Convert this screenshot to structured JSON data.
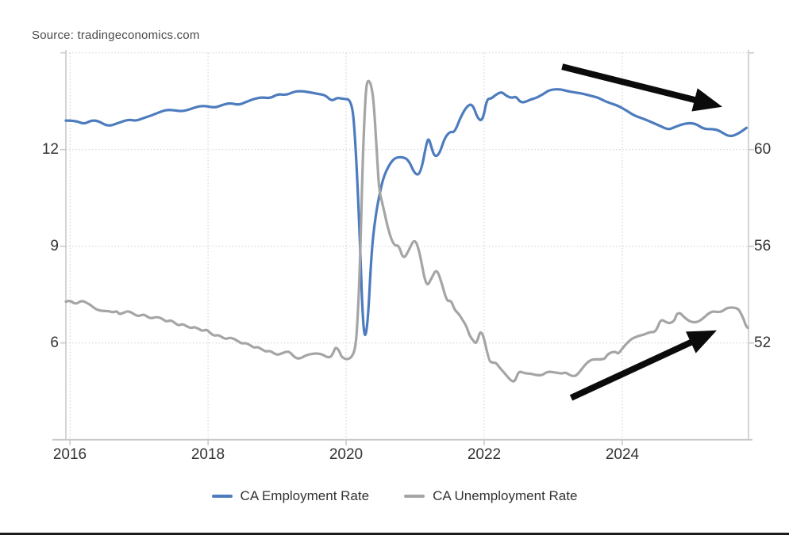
{
  "source": {
    "label": "Source: tradingeconomics.com"
  },
  "colors": {
    "employment_line": "#4d7cbe",
    "unemployment_line": "#a5a5a5",
    "arrow": "#0b0b0b",
    "grid": "#d4d4d4",
    "axis": "#c9c9c9",
    "text": "#333333"
  },
  "chart_data": {
    "type": "line",
    "title": "",
    "xlabel": "",
    "ylabel_left": "",
    "ylabel_right": "",
    "grid": "dotted",
    "legend_position": "bottom-center",
    "x_axis": {
      "domain": [
        2015.94,
        2025.83
      ],
      "ticks": [
        2016,
        2018,
        2020,
        2022,
        2024
      ],
      "tick_labels": [
        "2016",
        "2018",
        "2020",
        "2022",
        "2024"
      ]
    },
    "left_axis": {
      "range": [
        3,
        15
      ],
      "ticks": [
        6,
        9,
        12
      ],
      "tick_labels": [
        "6",
        "9",
        "12"
      ]
    },
    "right_axis": {
      "range": [
        48,
        64
      ],
      "ticks": [
        52,
        56,
        60
      ],
      "tick_labels": [
        "52",
        "56",
        "60"
      ]
    },
    "series": [
      {
        "id": "employment",
        "name": "CA Employment Rate",
        "axis": "right",
        "color": "#4d7cbe",
        "points": [
          [
            2015.94,
            61.2
          ],
          [
            2016.08,
            61.2
          ],
          [
            2016.2,
            61.05
          ],
          [
            2016.3,
            61.2
          ],
          [
            2016.4,
            61.2
          ],
          [
            2016.55,
            60.95
          ],
          [
            2016.7,
            61.1
          ],
          [
            2016.85,
            61.25
          ],
          [
            2016.95,
            61.18
          ],
          [
            2017.06,
            61.3
          ],
          [
            2017.17,
            61.4
          ],
          [
            2017.3,
            61.55
          ],
          [
            2017.4,
            61.65
          ],
          [
            2017.52,
            61.62
          ],
          [
            2017.63,
            61.58
          ],
          [
            2017.75,
            61.68
          ],
          [
            2017.87,
            61.8
          ],
          [
            2017.98,
            61.8
          ],
          [
            2018.1,
            61.73
          ],
          [
            2018.21,
            61.85
          ],
          [
            2018.32,
            61.93
          ],
          [
            2018.44,
            61.84
          ],
          [
            2018.55,
            61.97
          ],
          [
            2018.67,
            62.1
          ],
          [
            2018.78,
            62.16
          ],
          [
            2018.9,
            62.12
          ],
          [
            2019.01,
            62.3
          ],
          [
            2019.13,
            62.25
          ],
          [
            2019.25,
            62.4
          ],
          [
            2019.35,
            62.42
          ],
          [
            2019.45,
            62.38
          ],
          [
            2019.6,
            62.3
          ],
          [
            2019.7,
            62.25
          ],
          [
            2019.79,
            62.0
          ],
          [
            2019.87,
            62.15
          ],
          [
            2019.95,
            62.1
          ],
          [
            2020.08,
            62.07
          ],
          [
            2020.13,
            60.6
          ],
          [
            2020.19,
            57.0
          ],
          [
            2020.25,
            52.15
          ],
          [
            2020.31,
            52.55
          ],
          [
            2020.37,
            55.9
          ],
          [
            2020.43,
            57.3
          ],
          [
            2020.48,
            58.1
          ],
          [
            2020.54,
            58.85
          ],
          [
            2020.62,
            59.35
          ],
          [
            2020.7,
            59.65
          ],
          [
            2020.8,
            59.7
          ],
          [
            2020.9,
            59.6
          ],
          [
            2021.0,
            58.95
          ],
          [
            2021.08,
            59.0
          ],
          [
            2021.17,
            60.35
          ],
          [
            2021.2,
            60.45
          ],
          [
            2021.23,
            60.15
          ],
          [
            2021.28,
            59.7
          ],
          [
            2021.35,
            59.8
          ],
          [
            2021.43,
            60.5
          ],
          [
            2021.51,
            60.75
          ],
          [
            2021.57,
            60.7
          ],
          [
            2021.66,
            61.35
          ],
          [
            2021.75,
            61.8
          ],
          [
            2021.83,
            61.9
          ],
          [
            2021.91,
            61.25
          ],
          [
            2021.98,
            61.2
          ],
          [
            2022.04,
            62.1
          ],
          [
            2022.1,
            62.1
          ],
          [
            2022.16,
            62.25
          ],
          [
            2022.25,
            62.4
          ],
          [
            2022.32,
            62.22
          ],
          [
            2022.4,
            62.13
          ],
          [
            2022.46,
            62.2
          ],
          [
            2022.52,
            61.97
          ],
          [
            2022.58,
            61.95
          ],
          [
            2022.67,
            62.07
          ],
          [
            2022.75,
            62.13
          ],
          [
            2022.86,
            62.3
          ],
          [
            2022.95,
            62.48
          ],
          [
            2023.1,
            62.5
          ],
          [
            2023.2,
            62.42
          ],
          [
            2023.32,
            62.36
          ],
          [
            2023.45,
            62.3
          ],
          [
            2023.55,
            62.22
          ],
          [
            2023.65,
            62.15
          ],
          [
            2023.75,
            62.0
          ],
          [
            2023.85,
            61.9
          ],
          [
            2023.95,
            61.8
          ],
          [
            2024.07,
            61.6
          ],
          [
            2024.18,
            61.4
          ],
          [
            2024.33,
            61.25
          ],
          [
            2024.53,
            61.0
          ],
          [
            2024.67,
            60.82
          ],
          [
            2024.75,
            60.92
          ],
          [
            2024.9,
            61.08
          ],
          [
            2025.05,
            61.1
          ],
          [
            2025.18,
            60.85
          ],
          [
            2025.3,
            60.85
          ],
          [
            2025.4,
            60.8
          ],
          [
            2025.55,
            60.52
          ],
          [
            2025.68,
            60.65
          ],
          [
            2025.8,
            60.9
          ]
        ]
      },
      {
        "id": "unemployment",
        "name": "CA Unemployment Rate",
        "axis": "left",
        "color": "#a5a5a5",
        "points": [
          [
            2015.94,
            7.28
          ],
          [
            2016.0,
            7.33
          ],
          [
            2016.08,
            7.19
          ],
          [
            2016.17,
            7.33
          ],
          [
            2016.29,
            7.19
          ],
          [
            2016.34,
            7.1
          ],
          [
            2016.4,
            7.02
          ],
          [
            2016.48,
            6.99
          ],
          [
            2016.56,
            6.99
          ],
          [
            2016.62,
            6.95
          ],
          [
            2016.68,
            6.99
          ],
          [
            2016.71,
            6.89
          ],
          [
            2016.77,
            6.93
          ],
          [
            2016.83,
            6.99
          ],
          [
            2016.89,
            6.95
          ],
          [
            2016.94,
            6.87
          ],
          [
            2017.0,
            6.83
          ],
          [
            2017.06,
            6.89
          ],
          [
            2017.11,
            6.83
          ],
          [
            2017.17,
            6.76
          ],
          [
            2017.23,
            6.8
          ],
          [
            2017.29,
            6.8
          ],
          [
            2017.34,
            6.74
          ],
          [
            2017.4,
            6.66
          ],
          [
            2017.46,
            6.71
          ],
          [
            2017.52,
            6.62
          ],
          [
            2017.57,
            6.54
          ],
          [
            2017.63,
            6.59
          ],
          [
            2017.69,
            6.52
          ],
          [
            2017.75,
            6.46
          ],
          [
            2017.8,
            6.5
          ],
          [
            2017.86,
            6.44
          ],
          [
            2017.92,
            6.37
          ],
          [
            2017.98,
            6.42
          ],
          [
            2018.03,
            6.31
          ],
          [
            2018.09,
            6.22
          ],
          [
            2018.15,
            6.25
          ],
          [
            2018.21,
            6.17
          ],
          [
            2018.26,
            6.12
          ],
          [
            2018.32,
            6.17
          ],
          [
            2018.38,
            6.12
          ],
          [
            2018.44,
            6.05
          ],
          [
            2018.49,
            5.98
          ],
          [
            2018.55,
            6.0
          ],
          [
            2018.61,
            5.93
          ],
          [
            2018.67,
            5.85
          ],
          [
            2018.72,
            5.88
          ],
          [
            2018.78,
            5.8
          ],
          [
            2018.84,
            5.73
          ],
          [
            2018.9,
            5.76
          ],
          [
            2018.95,
            5.68
          ],
          [
            2019.01,
            5.63
          ],
          [
            2019.07,
            5.68
          ],
          [
            2019.13,
            5.73
          ],
          [
            2019.18,
            5.73
          ],
          [
            2019.26,
            5.54
          ],
          [
            2019.33,
            5.51
          ],
          [
            2019.41,
            5.61
          ],
          [
            2019.49,
            5.66
          ],
          [
            2019.59,
            5.68
          ],
          [
            2019.67,
            5.63
          ],
          [
            2019.72,
            5.56
          ],
          [
            2019.78,
            5.56
          ],
          [
            2019.82,
            5.73
          ],
          [
            2019.85,
            5.88
          ],
          [
            2019.9,
            5.76
          ],
          [
            2019.93,
            5.58
          ],
          [
            2019.98,
            5.51
          ],
          [
            2020.02,
            5.49
          ],
          [
            2020.08,
            5.56
          ],
          [
            2020.13,
            5.8
          ],
          [
            2020.16,
            6.46
          ],
          [
            2020.2,
            8.3
          ],
          [
            2020.24,
            11.7
          ],
          [
            2020.28,
            13.7
          ],
          [
            2020.31,
            14.2
          ],
          [
            2020.37,
            14.0
          ],
          [
            2020.41,
            13.2
          ],
          [
            2020.45,
            11.7
          ],
          [
            2020.48,
            10.7
          ],
          [
            2020.53,
            10.3
          ],
          [
            2020.62,
            9.42
          ],
          [
            2020.7,
            9.0
          ],
          [
            2020.76,
            9.05
          ],
          [
            2020.83,
            8.58
          ],
          [
            2020.91,
            8.88
          ],
          [
            2020.99,
            9.25
          ],
          [
            2021.06,
            8.88
          ],
          [
            2021.16,
            7.7
          ],
          [
            2021.24,
            8.02
          ],
          [
            2021.31,
            8.31
          ],
          [
            2021.38,
            7.9
          ],
          [
            2021.46,
            7.28
          ],
          [
            2021.52,
            7.33
          ],
          [
            2021.57,
            7.03
          ],
          [
            2021.63,
            6.91
          ],
          [
            2021.68,
            6.74
          ],
          [
            2021.74,
            6.54
          ],
          [
            2021.79,
            6.22
          ],
          [
            2021.85,
            6.05
          ],
          [
            2021.89,
            5.97
          ],
          [
            2021.96,
            6.5
          ],
          [
            2022.07,
            5.45
          ],
          [
            2022.11,
            5.39
          ],
          [
            2022.17,
            5.39
          ],
          [
            2022.21,
            5.27
          ],
          [
            2022.26,
            5.15
          ],
          [
            2022.32,
            5.0
          ],
          [
            2022.38,
            4.85
          ],
          [
            2022.44,
            4.78
          ],
          [
            2022.49,
            5.07
          ],
          [
            2022.52,
            5.11
          ],
          [
            2022.55,
            5.09
          ],
          [
            2022.61,
            5.05
          ],
          [
            2022.67,
            5.05
          ],
          [
            2022.72,
            5.02
          ],
          [
            2022.78,
            5.0
          ],
          [
            2022.84,
            5.0
          ],
          [
            2022.9,
            5.09
          ],
          [
            2022.95,
            5.11
          ],
          [
            2023.01,
            5.09
          ],
          [
            2023.07,
            5.07
          ],
          [
            2023.13,
            5.05
          ],
          [
            2023.18,
            5.09
          ],
          [
            2023.24,
            5.0
          ],
          [
            2023.3,
            4.97
          ],
          [
            2023.34,
            5.0
          ],
          [
            2023.4,
            5.15
          ],
          [
            2023.46,
            5.32
          ],
          [
            2023.52,
            5.44
          ],
          [
            2023.57,
            5.49
          ],
          [
            2023.63,
            5.49
          ],
          [
            2023.69,
            5.49
          ],
          [
            2023.75,
            5.51
          ],
          [
            2023.78,
            5.63
          ],
          [
            2023.84,
            5.71
          ],
          [
            2023.9,
            5.73
          ],
          [
            2023.93,
            5.68
          ],
          [
            2023.95,
            5.68
          ],
          [
            2024.01,
            5.85
          ],
          [
            2024.07,
            6.0
          ],
          [
            2024.13,
            6.12
          ],
          [
            2024.18,
            6.17
          ],
          [
            2024.24,
            6.22
          ],
          [
            2024.3,
            6.25
          ],
          [
            2024.36,
            6.3
          ],
          [
            2024.41,
            6.34
          ],
          [
            2024.47,
            6.34
          ],
          [
            2024.51,
            6.47
          ],
          [
            2024.55,
            6.69
          ],
          [
            2024.59,
            6.71
          ],
          [
            2024.62,
            6.66
          ],
          [
            2024.68,
            6.61
          ],
          [
            2024.72,
            6.64
          ],
          [
            2024.76,
            6.71
          ],
          [
            2024.79,
            6.91
          ],
          [
            2024.84,
            6.93
          ],
          [
            2024.87,
            6.86
          ],
          [
            2024.93,
            6.74
          ],
          [
            2024.99,
            6.66
          ],
          [
            2025.05,
            6.64
          ],
          [
            2025.1,
            6.66
          ],
          [
            2025.16,
            6.74
          ],
          [
            2025.22,
            6.86
          ],
          [
            2025.28,
            6.96
          ],
          [
            2025.33,
            6.98
          ],
          [
            2025.39,
            6.96
          ],
          [
            2025.45,
            6.98
          ],
          [
            2025.51,
            7.08
          ],
          [
            2025.56,
            7.1
          ],
          [
            2025.62,
            7.1
          ],
          [
            2025.68,
            7.06
          ],
          [
            2025.71,
            6.96
          ],
          [
            2025.76,
            6.74
          ],
          [
            2025.79,
            6.54
          ],
          [
            2025.82,
            6.47
          ]
        ]
      }
    ],
    "annotations": [
      {
        "id": "employment-decline-arrow",
        "type": "arrow",
        "axis": "right",
        "from": [
          2023.13,
          63.43
        ],
        "to": [
          2025.45,
          61.77
        ],
        "color": "#0b0b0b"
      },
      {
        "id": "unemployment-rise-arrow",
        "type": "arrow",
        "axis": "left",
        "from": [
          2023.26,
          4.3
        ],
        "to": [
          2025.37,
          6.39
        ],
        "color": "#0b0b0b"
      }
    ]
  },
  "legend": {
    "items": [
      {
        "label": "CA Employment Rate"
      },
      {
        "label": "CA Unemployment Rate"
      }
    ]
  }
}
